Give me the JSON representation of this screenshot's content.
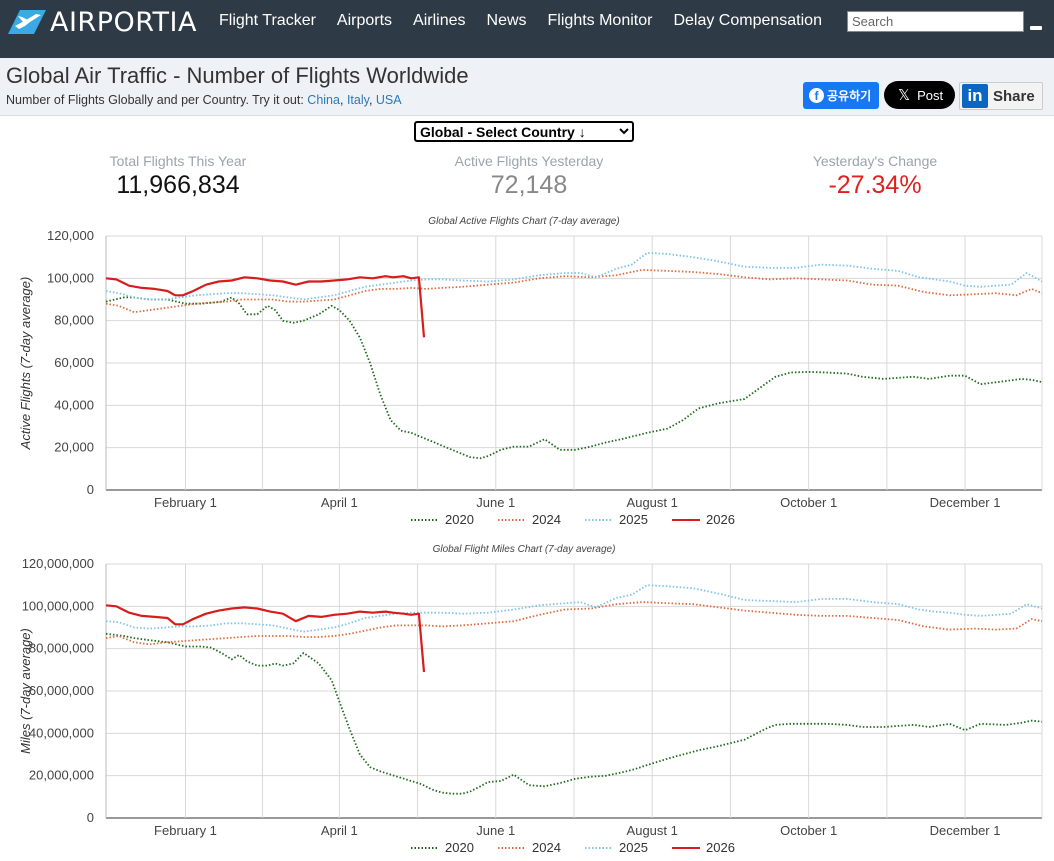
{
  "brand": {
    "name": "AIRPORTIA"
  },
  "nav": [
    "Flight Tracker",
    "Airports",
    "Airlines",
    "News",
    "Flights Monitor",
    "Delay Compensation"
  ],
  "search": {
    "placeholder": "Search"
  },
  "title": "Global Air Traffic - Number of Flights Worldwide",
  "subtitle": {
    "text": "Number of Flights Globally and per Country. Try it out:",
    "links": [
      "China",
      "Italy",
      "USA"
    ]
  },
  "share": {
    "facebook": "공유하기",
    "x": "Post",
    "linkedin": "Share"
  },
  "country_select": {
    "selected": "Global - Select Country ↓"
  },
  "stats": [
    {
      "label": "Total Flights This Year",
      "value": "11,966,834"
    },
    {
      "label": "Active Flights Yesterday",
      "value": "72,148"
    },
    {
      "label": "Yesterday's Change",
      "value": "-27.34%"
    }
  ],
  "colors": {
    "2020": "#1e6b1e",
    "2024": "#e06a3c",
    "2025": "#7cc4ea",
    "2026": "#d81b1b",
    "nav_bg": "#2e3a46",
    "title_bg": "#eef2f6"
  },
  "chart_data": [
    {
      "type": "line",
      "title": "Global Active Flights Chart (7-day average)",
      "xlabel": "",
      "ylabel": "Active Flights (7-day average)",
      "x_unit": "day_of_year",
      "xlim": [
        1,
        366
      ],
      "ylim": [
        0,
        120000
      ],
      "y_ticks": [
        0,
        20000,
        40000,
        60000,
        80000,
        100000,
        120000
      ],
      "y_tick_labels": [
        "0",
        "20,000",
        "40,000",
        "60,000",
        "80,000",
        "100,000",
        "120,000"
      ],
      "x_ticks": [
        32,
        92,
        153,
        214,
        275,
        336
      ],
      "x_tick_labels": [
        "February 1",
        "April 1",
        "June 1",
        "August 1",
        "October 1",
        "December 1"
      ],
      "grid": true,
      "legend": "bottom",
      "series": [
        {
          "name": "2020",
          "style": "dotted",
          "x": [
            1,
            8,
            12,
            18,
            25,
            32,
            38,
            42,
            46,
            50,
            53,
            56,
            60,
            64,
            67,
            70,
            74,
            78,
            84,
            89,
            92,
            96,
            100,
            104,
            108,
            112,
            116,
            120,
            124,
            128,
            132,
            136,
            140,
            143,
            147,
            150,
            155,
            160,
            166,
            172,
            178,
            184,
            190,
            196,
            202,
            207,
            212,
            216,
            220,
            226,
            232,
            240,
            250,
            258,
            262,
            268,
            275,
            282,
            290,
            296,
            300,
            304,
            310,
            316,
            322,
            330,
            336,
            342,
            352,
            358,
            362,
            366
          ],
          "y": [
            89000,
            91000,
            91000,
            90000,
            90000,
            88000,
            88000,
            88500,
            89000,
            91000,
            88000,
            83000,
            83000,
            87000,
            85000,
            80000,
            79000,
            80000,
            83000,
            87000,
            85000,
            80000,
            72000,
            60000,
            45000,
            33000,
            28000,
            27000,
            25000,
            23000,
            21000,
            19000,
            17000,
            15500,
            15000,
            16000,
            19000,
            20500,
            20500,
            24000,
            19000,
            19000,
            20500,
            22500,
            24000,
            25500,
            27000,
            28000,
            29000,
            33000,
            38500,
            41000,
            43000,
            50000,
            53500,
            55500,
            55800,
            55500,
            55000,
            53500,
            53000,
            52500,
            53000,
            53500,
            52500,
            54000,
            54000,
            50000,
            51500,
            52500,
            52000,
            51000
          ]
        },
        {
          "name": "2024",
          "style": "dotted",
          "x": [
            1,
            6,
            12,
            18,
            24,
            30,
            36,
            42,
            48,
            54,
            60,
            66,
            72,
            78,
            84,
            90,
            96,
            102,
            108,
            114,
            120,
            126,
            132,
            140,
            150,
            160,
            170,
            180,
            190,
            200,
            210,
            220,
            230,
            240,
            250,
            260,
            270,
            280,
            290,
            300,
            310,
            320,
            330,
            340,
            348,
            356,
            362,
            366
          ],
          "y": [
            88000,
            87000,
            84000,
            85000,
            86000,
            87000,
            88000,
            88500,
            89000,
            90000,
            90000,
            90000,
            89000,
            89000,
            89500,
            90000,
            92000,
            94000,
            95000,
            95000,
            95500,
            95000,
            95500,
            96000,
            97000,
            98000,
            100000,
            101000,
            100500,
            101500,
            104000,
            103500,
            103000,
            102000,
            100500,
            99500,
            100000,
            99500,
            99000,
            97000,
            96500,
            93500,
            92000,
            92500,
            93000,
            92000,
            95000,
            93000
          ]
        },
        {
          "name": "2025",
          "style": "dotted",
          "x": [
            1,
            6,
            12,
            18,
            24,
            30,
            36,
            42,
            48,
            54,
            60,
            66,
            72,
            78,
            84,
            90,
            96,
            102,
            108,
            114,
            120,
            126,
            132,
            140,
            150,
            160,
            170,
            180,
            186,
            192,
            200,
            206,
            212,
            220,
            230,
            240,
            250,
            260,
            270,
            280,
            290,
            300,
            310,
            318,
            324,
            330,
            336,
            342,
            348,
            354,
            360,
            366
          ],
          "y": [
            94000,
            93000,
            91000,
            90000,
            90000,
            91000,
            92000,
            92500,
            93000,
            93000,
            92500,
            92000,
            91000,
            90000,
            91000,
            92000,
            94000,
            96000,
            97000,
            98000,
            99000,
            99500,
            99500,
            99000,
            98500,
            99500,
            101500,
            102500,
            102500,
            100500,
            104500,
            106500,
            112000,
            111500,
            110000,
            108000,
            105500,
            105000,
            105000,
            106500,
            106000,
            104500,
            103500,
            100500,
            99500,
            98500,
            96500,
            96000,
            96500,
            97000,
            102500,
            98500
          ]
        },
        {
          "name": "2026",
          "style": "solid",
          "x": [
            1,
            5,
            10,
            15,
            20,
            25,
            28,
            31,
            35,
            40,
            45,
            50,
            55,
            60,
            65,
            70,
            75,
            80,
            85,
            90,
            95,
            100,
            105,
            110,
            113,
            117,
            120,
            123,
            125
          ],
          "y": [
            100000,
            99500,
            96500,
            95500,
            95000,
            94000,
            92000,
            92000,
            94000,
            97000,
            98500,
            99000,
            100500,
            100000,
            99000,
            98500,
            97000,
            98500,
            98500,
            99000,
            99500,
            100500,
            100000,
            101000,
            100500,
            101000,
            100000,
            100500,
            72148
          ]
        }
      ]
    },
    {
      "type": "line",
      "title": "Global Flight Miles Chart (7-day average)",
      "xlabel": "",
      "ylabel": "Miles (7-day average)",
      "x_unit": "day_of_year",
      "xlim": [
        1,
        366
      ],
      "ylim": [
        0,
        120000000
      ],
      "y_ticks": [
        0,
        20000000,
        40000000,
        60000000,
        80000000,
        100000000,
        120000000
      ],
      "y_tick_labels": [
        "0",
        "20,000,000",
        "40,000,000",
        "60,000,000",
        "80,000,000",
        "100,000,000",
        "120,000,000"
      ],
      "x_ticks": [
        32,
        92,
        153,
        214,
        275,
        336
      ],
      "x_tick_labels": [
        "February 1",
        "April 1",
        "June 1",
        "August 1",
        "October 1",
        "December 1"
      ],
      "grid": true,
      "legend": "bottom",
      "series": [
        {
          "name": "2020",
          "style": "dotted",
          "x": [
            1,
            8,
            12,
            18,
            25,
            32,
            38,
            42,
            46,
            50,
            53,
            56,
            60,
            64,
            67,
            70,
            74,
            78,
            84,
            89,
            92,
            96,
            100,
            104,
            108,
            112,
            116,
            120,
            124,
            128,
            132,
            136,
            140,
            143,
            147,
            150,
            155,
            160,
            166,
            172,
            178,
            184,
            190,
            196,
            202,
            207,
            212,
            216,
            220,
            226,
            232,
            240,
            250,
            258,
            262,
            268,
            275,
            282,
            290,
            296,
            300,
            304,
            310,
            316,
            322,
            330,
            336,
            342,
            352,
            358,
            362,
            366
          ],
          "y": [
            87000000,
            86000000,
            85000000,
            84000000,
            83000000,
            81000000,
            81000000,
            80500000,
            78000000,
            75000000,
            77000000,
            74000000,
            72000000,
            72000000,
            73000000,
            72000000,
            73000000,
            78000000,
            73000000,
            65000000,
            55000000,
            42000000,
            30000000,
            24000000,
            22000000,
            20500000,
            19000000,
            17500000,
            16000000,
            13500000,
            12000000,
            11500000,
            11500000,
            12500000,
            15000000,
            17000000,
            17500000,
            20500000,
            15500000,
            15000000,
            16500000,
            18500000,
            19500000,
            20000000,
            21500000,
            23000000,
            25000000,
            26500000,
            28000000,
            30000000,
            32000000,
            34000000,
            37000000,
            42000000,
            44000000,
            44500000,
            44500000,
            44500000,
            44000000,
            43000000,
            43000000,
            43000000,
            43500000,
            44000000,
            43000000,
            44500000,
            41500000,
            44500000,
            44000000,
            45000000,
            46000000,
            45500000
          ]
        },
        {
          "name": "2024",
          "style": "dotted",
          "x": [
            1,
            6,
            12,
            18,
            24,
            30,
            36,
            42,
            48,
            54,
            60,
            66,
            72,
            78,
            84,
            90,
            96,
            102,
            108,
            114,
            120,
            126,
            132,
            140,
            150,
            160,
            170,
            180,
            190,
            200,
            210,
            220,
            230,
            240,
            250,
            260,
            270,
            280,
            290,
            300,
            310,
            320,
            330,
            340,
            348,
            356,
            362,
            366
          ],
          "y": [
            85000000,
            86000000,
            83000000,
            82000000,
            83000000,
            83500000,
            84000000,
            84500000,
            85000000,
            85500000,
            86000000,
            86000000,
            86000000,
            85500000,
            85500000,
            86000000,
            87000000,
            88500000,
            90000000,
            91000000,
            91000000,
            91000000,
            90500000,
            91000000,
            92000000,
            93000000,
            96000000,
            98500000,
            99000000,
            101000000,
            102000000,
            101500000,
            101000000,
            99500000,
            98000000,
            97000000,
            96000000,
            95500000,
            95500000,
            94500000,
            93500000,
            90500000,
            89000000,
            89500000,
            89000000,
            89500000,
            94000000,
            93000000
          ]
        },
        {
          "name": "2025",
          "style": "dotted",
          "x": [
            1,
            6,
            12,
            18,
            24,
            30,
            36,
            42,
            48,
            54,
            60,
            66,
            72,
            78,
            84,
            90,
            96,
            102,
            108,
            114,
            120,
            126,
            132,
            140,
            150,
            160,
            170,
            180,
            186,
            192,
            200,
            206,
            212,
            220,
            230,
            240,
            250,
            260,
            270,
            280,
            290,
            300,
            310,
            318,
            324,
            330,
            336,
            342,
            348,
            354,
            360,
            366
          ],
          "y": [
            93000000,
            92500000,
            90000000,
            89500000,
            90000000,
            90500000,
            90500000,
            91000000,
            92000000,
            92000000,
            91500000,
            91000000,
            89500000,
            88000000,
            89000000,
            90000000,
            92000000,
            94500000,
            95500000,
            96500000,
            97000000,
            97000000,
            97000000,
            96500000,
            97000000,
            98500000,
            100500000,
            101500000,
            102000000,
            99500000,
            104000000,
            105500000,
            110000000,
            109500000,
            108500000,
            106000000,
            103000000,
            102500000,
            102000000,
            103500000,
            103500000,
            102000000,
            101000000,
            98500000,
            97500000,
            97000000,
            96000000,
            95500000,
            96000000,
            96500000,
            101000000,
            99000000
          ]
        },
        {
          "name": "2026",
          "style": "solid",
          "x": [
            1,
            5,
            10,
            15,
            20,
            25,
            28,
            31,
            35,
            40,
            45,
            50,
            55,
            60,
            65,
            70,
            75,
            80,
            85,
            90,
            95,
            100,
            105,
            110,
            113,
            117,
            120,
            123,
            125
          ],
          "y": [
            100500000,
            100000000,
            97000000,
            95500000,
            95000000,
            94500000,
            91500000,
            91500000,
            94000000,
            96500000,
            98000000,
            99000000,
            99500000,
            99000000,
            97500000,
            96500000,
            93000000,
            95500000,
            95000000,
            96000000,
            96500000,
            97500000,
            97000000,
            97500000,
            97000000,
            96500000,
            96000000,
            96500000,
            69000000
          ]
        }
      ]
    }
  ]
}
